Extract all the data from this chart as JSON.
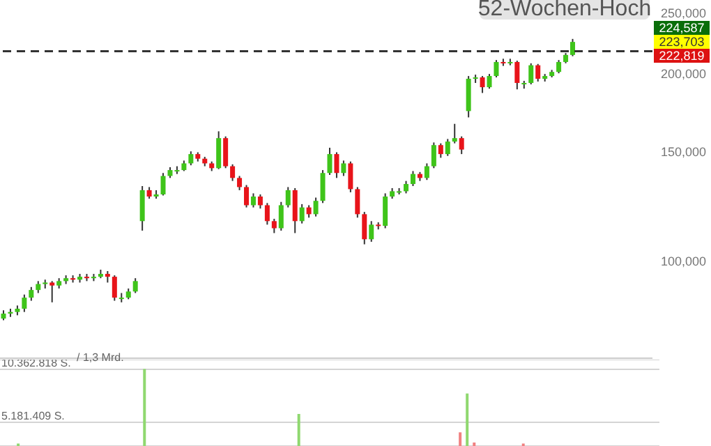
{
  "chart_data": [
    {
      "type": "candlestick",
      "log": true,
      "tick_labels": "y",
      "ylim": [
        70000,
        262000
      ],
      "yticks": [
        {
          "value": 100000,
          "label": "100,000"
        },
        {
          "value": 150000,
          "label": "150,000"
        },
        {
          "value": 200000,
          "label": "200,000"
        },
        {
          "value": 250000,
          "label": "250,000"
        }
      ],
      "ref_lines": [
        {
          "axis": "y",
          "value": 217000,
          "label": "52-Wochen-Hoch",
          "line_style": "dashed",
          "color": "#333333"
        }
      ],
      "annotations": [
        "224,587",
        "223,703",
        "222,819"
      ],
      "categories": [
        null,
        null,
        null,
        null,
        null,
        null,
        null,
        null,
        null,
        null,
        null,
        null,
        null,
        null,
        null,
        null,
        null,
        null,
        null,
        null,
        null,
        null,
        null,
        null,
        null,
        null,
        null,
        null,
        null,
        null,
        null,
        null,
        null,
        null,
        null,
        null,
        null,
        null,
        null,
        null,
        null,
        null,
        null,
        null,
        null,
        null,
        null,
        null,
        null,
        null,
        null,
        null,
        null,
        null,
        null,
        null,
        null,
        null,
        null,
        null,
        null,
        null,
        null,
        null,
        null,
        null,
        null,
        null,
        null,
        null,
        null,
        null,
        null,
        null,
        null,
        null,
        null,
        null,
        null,
        null,
        null,
        null,
        null,
        null,
        null,
        null,
        null,
        null,
        null,
        null,
        null,
        null,
        null,
        null
      ],
      "ohlc": [
        [
          81000,
          83500,
          80500,
          82500
        ],
        [
          82500,
          84000,
          81500,
          83000
        ],
        [
          83000,
          85000,
          82000,
          84000
        ],
        [
          84000,
          88500,
          83000,
          87500
        ],
        [
          87500,
          91000,
          86500,
          90000
        ],
        [
          90000,
          93000,
          89000,
          92000
        ],
        [
          92000,
          93500,
          90500,
          92500
        ],
        [
          92500,
          93000,
          86000,
          91500
        ],
        [
          91500,
          94000,
          90500,
          93000
        ],
        [
          93000,
          95000,
          92000,
          94000
        ],
        [
          94000,
          95000,
          92500,
          93500
        ],
        [
          93500,
          95500,
          92500,
          94500
        ],
        [
          94500,
          95500,
          93000,
          94000
        ],
        [
          94000,
          95500,
          93000,
          94500
        ],
        [
          94500,
          97000,
          94000,
          95500
        ],
        [
          95500,
          96500,
          92500,
          94500
        ],
        [
          94500,
          95000,
          86500,
          87500
        ],
        [
          87500,
          89000,
          86000,
          87500
        ],
        [
          87500,
          90500,
          87000,
          89500
        ],
        [
          89500,
          94000,
          89000,
          93000
        ],
        [
          116000,
          132000,
          112000,
          130000
        ],
        [
          130000,
          131500,
          126000,
          127000
        ],
        [
          127000,
          130000,
          126000,
          128000
        ],
        [
          128000,
          138500,
          127500,
          137000
        ],
        [
          137000,
          141500,
          136000,
          140000
        ],
        [
          140000,
          142000,
          138000,
          140000
        ],
        [
          140000,
          145000,
          139500,
          143500
        ],
        [
          143500,
          150000,
          142500,
          148500
        ],
        [
          148500,
          149500,
          144500,
          146000
        ],
        [
          146000,
          147000,
          142000,
          143500
        ],
        [
          143500,
          144500,
          139500,
          141000
        ],
        [
          141000,
          161500,
          140500,
          157500
        ],
        [
          157500,
          158500,
          141000,
          142000
        ],
        [
          142000,
          143000,
          134500,
          136000
        ],
        [
          136000,
          137000,
          130000,
          131500
        ],
        [
          131500,
          132500,
          122000,
          123000
        ],
        [
          123000,
          128500,
          122000,
          127000
        ],
        [
          127000,
          128000,
          121500,
          123000
        ],
        [
          123000,
          124000,
          114500,
          116000
        ],
        [
          116000,
          117000,
          111000,
          113000
        ],
        [
          113000,
          124500,
          112000,
          123000
        ],
        [
          123000,
          131500,
          122000,
          130000
        ],
        [
          130000,
          131000,
          111000,
          116000
        ],
        [
          116000,
          123500,
          115000,
          122000
        ],
        [
          122000,
          123000,
          117500,
          119000
        ],
        [
          119000,
          126500,
          118000,
          125000
        ],
        [
          125000,
          140000,
          124000,
          138500
        ],
        [
          138500,
          152000,
          137500,
          148500
        ],
        [
          148500,
          149500,
          136000,
          138500
        ],
        [
          138500,
          145000,
          137000,
          143500
        ],
        [
          143500,
          144500,
          129000,
          130500
        ],
        [
          130500,
          131500,
          117500,
          119000
        ],
        [
          119000,
          120000,
          106500,
          108500
        ],
        [
          108500,
          116000,
          107500,
          114500
        ],
        [
          114500,
          115500,
          112500,
          114000
        ],
        [
          114000,
          128500,
          113000,
          127000
        ],
        [
          127000,
          131000,
          126000,
          129500
        ],
        [
          129500,
          131000,
          128000,
          129500
        ],
        [
          129500,
          134500,
          128500,
          133000
        ],
        [
          133000,
          139500,
          132000,
          138000
        ],
        [
          138000,
          139000,
          134500,
          136000
        ],
        [
          136000,
          143500,
          135000,
          142000
        ],
        [
          142000,
          155000,
          141000,
          153500
        ],
        [
          153500,
          154500,
          146500,
          148500
        ],
        [
          148500,
          157000,
          147500,
          155500
        ],
        [
          155500,
          166000,
          154500,
          157500
        ],
        [
          157500,
          158500,
          148500,
          151000
        ],
        [
          174000,
          198000,
          170000,
          196000
        ],
        [
          196000,
          199000,
          193000,
          197000
        ],
        [
          197000,
          198000,
          186000,
          190000
        ],
        [
          190000,
          199500,
          189000,
          198000
        ],
        [
          198000,
          210000,
          197000,
          208500
        ],
        [
          208500,
          211000,
          205500,
          207500
        ],
        [
          207500,
          211000,
          206000,
          208500
        ],
        [
          208500,
          209500,
          188500,
          193000
        ],
        [
          193000,
          194500,
          189000,
          193000
        ],
        [
          193000,
          207500,
          192000,
          206000
        ],
        [
          206000,
          207000,
          194000,
          196000
        ],
        [
          196000,
          199500,
          194000,
          198000
        ],
        [
          198000,
          202500,
          197000,
          201000
        ],
        [
          201000,
          210000,
          200000,
          208500
        ],
        [
          208500,
          215500,
          207500,
          214000
        ],
        [
          214000,
          227000,
          213000,
          224500
        ],
        null,
        null,
        null,
        null,
        null,
        null,
        null,
        null,
        null,
        null,
        null
      ]
    },
    {
      "type": "bar",
      "tick_labels": "y",
      "grid": "y",
      "ylim": [
        2860000,
        11320000
      ],
      "yticks": [
        {
          "value": 5181409,
          "label": "5.181.409 S."
        },
        {
          "value": 10362818,
          "label": "10.362.818 S."
        }
      ],
      "annotations": [
        "/ 1,3 Mrd."
      ],
      "categories": [
        null,
        null,
        null,
        null,
        null,
        null,
        null,
        null,
        null,
        null,
        null,
        null,
        null,
        null,
        null,
        null,
        null,
        null,
        null,
        null,
        null,
        null,
        null,
        null,
        null,
        null,
        null,
        null,
        null,
        null,
        null,
        null,
        null,
        null,
        null,
        null,
        null,
        null,
        null,
        null,
        null,
        null,
        null,
        null,
        null,
        null,
        null,
        null,
        null,
        null,
        null,
        null,
        null,
        null,
        null,
        null,
        null,
        null,
        null,
        null,
        null,
        null,
        null,
        null,
        null,
        null,
        null,
        null,
        null,
        null,
        null,
        null,
        null,
        null,
        null,
        null,
        null,
        null,
        null,
        null,
        null,
        null,
        null,
        null,
        null,
        null,
        null,
        null,
        null,
        null,
        null,
        null,
        null,
        null
      ],
      "values": [
        null,
        null,
        3100000,
        null,
        null,
        null,
        null,
        null,
        null,
        null,
        null,
        null,
        null,
        null,
        null,
        null,
        null,
        null,
        null,
        null,
        10400000,
        null,
        null,
        null,
        null,
        null,
        null,
        null,
        null,
        null,
        null,
        null,
        null,
        null,
        null,
        null,
        null,
        null,
        null,
        null,
        null,
        null,
        6000000,
        null,
        null,
        null,
        null,
        null,
        null,
        null,
        null,
        null,
        null,
        null,
        null,
        null,
        null,
        null,
        null,
        null,
        null,
        null,
        null,
        null,
        null,
        4200000,
        8000000,
        3200000,
        null,
        null,
        null,
        null,
        null,
        null,
        3100000,
        null,
        null,
        null,
        null,
        null,
        null,
        null,
        null,
        null,
        null,
        null,
        null,
        null,
        null,
        null,
        null,
        null,
        null,
        null
      ],
      "colors": [
        null,
        null,
        "#8fd86f",
        null,
        null,
        null,
        null,
        null,
        null,
        null,
        null,
        null,
        null,
        null,
        null,
        null,
        null,
        null,
        null,
        null,
        "#8fd86f",
        null,
        null,
        null,
        null,
        null,
        null,
        null,
        null,
        null,
        null,
        null,
        null,
        null,
        null,
        null,
        null,
        null,
        null,
        null,
        null,
        null,
        "#8fd86f",
        null,
        null,
        null,
        null,
        null,
        null,
        null,
        null,
        null,
        null,
        null,
        null,
        null,
        null,
        null,
        null,
        null,
        null,
        null,
        null,
        null,
        null,
        "#f08080",
        "#8fd86f",
        "#f08080",
        null,
        null,
        null,
        null,
        null,
        null,
        "#f08080",
        null,
        null,
        null,
        null,
        null,
        null,
        null,
        null,
        null,
        null,
        null,
        null,
        null,
        null,
        null,
        null,
        null,
        null,
        null
      ]
    }
  ]
}
